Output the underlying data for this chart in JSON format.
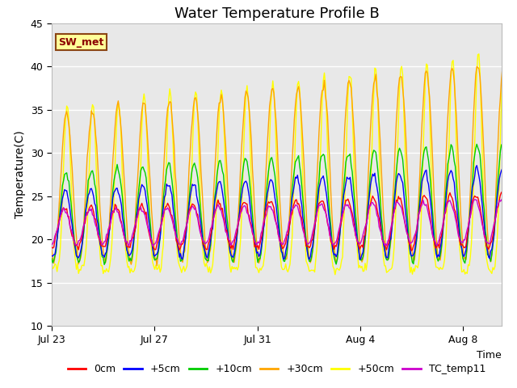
{
  "title": "Water Temperature Profile B",
  "xlabel": "Time",
  "ylabel": "Temperature(C)",
  "ylim": [
    10,
    45
  ],
  "yticks": [
    10,
    15,
    20,
    25,
    30,
    35,
    40,
    45
  ],
  "annotation_text": "SW_met",
  "annotation_color": "#8B0000",
  "annotation_bg": "#FFFF99",
  "annotation_border": "#8B4513",
  "x_tick_labels": [
    "Jul 23",
    "Jul 27",
    "Jul 31",
    "Aug 4",
    "Aug 8"
  ],
  "x_tick_positions": [
    0,
    4,
    8,
    12,
    16
  ],
  "colors": {
    "0cm": "#FF0000",
    "+5cm": "#0000FF",
    "+10cm": "#00CC00",
    "+30cm": "#FFA500",
    "+50cm": "#FFFF00",
    "TC_temp11": "#CC00CC"
  },
  "legend_labels": [
    "0cm",
    "+5cm",
    "+10cm",
    "+30cm",
    "+50cm",
    "TC_temp11"
  ],
  "plot_bg": "#E8E8E8",
  "grid_color": "#FFFFFF",
  "title_fontsize": 13,
  "axis_label_fontsize": 10,
  "tick_fontsize": 9,
  "n_days": 18,
  "hours_per_day": 24
}
